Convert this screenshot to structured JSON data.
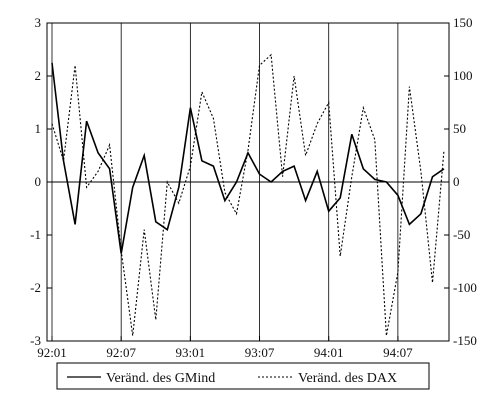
{
  "chart_data": {
    "type": "line",
    "title": "",
    "xlabel": "",
    "ylabel": "",
    "x": [
      "92:01",
      "92:02",
      "92:03",
      "92:04",
      "92:05",
      "92:06",
      "92:07",
      "92:08",
      "92:09",
      "92:10",
      "92:11",
      "92:12",
      "93:01",
      "93:02",
      "93:03",
      "93:04",
      "93:05",
      "93:06",
      "93:07",
      "93:08",
      "93:09",
      "93:10",
      "93:11",
      "93:12",
      "94:01",
      "94:02",
      "94:03",
      "94:04",
      "94:05",
      "94:06",
      "94:07",
      "94:08",
      "94:09",
      "94:10",
      "94:11"
    ],
    "x_tick_labels": [
      "92:01",
      "92:07",
      "93:01",
      "93:07",
      "94:01",
      "94:07"
    ],
    "y_left": {
      "lim": [
        -3,
        3
      ],
      "ticks": [
        "3",
        "2",
        "1",
        "0",
        "-1",
        "-2",
        "-3"
      ]
    },
    "y_right": {
      "lim": [
        -150,
        150
      ],
      "ticks": [
        "150",
        "100",
        "50",
        "0",
        "-50",
        "-100",
        "-150"
      ]
    },
    "vertical_grid_at": [
      "92:01",
      "92:07",
      "93:01",
      "93:07",
      "94:01",
      "94:07"
    ],
    "zero_line": true,
    "legend_placement": "bottom-center",
    "series": [
      {
        "name": "Veränd. des GMind",
        "axis": "left",
        "style": "solid",
        "color": "#000000",
        "values": [
          2.25,
          0.4,
          -0.8,
          1.15,
          0.55,
          0.25,
          -1.35,
          -0.1,
          0.5,
          -0.75,
          -0.9,
          -0.1,
          1.4,
          0.4,
          0.3,
          -0.35,
          0.0,
          0.55,
          0.15,
          0.0,
          0.2,
          0.3,
          -0.35,
          0.2,
          -0.55,
          -0.3,
          0.9,
          0.25,
          0.05,
          0.0,
          -0.25,
          -0.8,
          -0.6,
          0.1,
          0.25
        ]
      },
      {
        "name": "Veränd. des DAX",
        "axis": "right",
        "style": "dotted",
        "color": "#000000",
        "values": [
          55,
          20,
          110,
          -5,
          10,
          35,
          -65,
          -145,
          -45,
          -130,
          0,
          -20,
          15,
          85,
          60,
          -10,
          -30,
          30,
          110,
          120,
          5,
          100,
          25,
          55,
          75,
          -70,
          5,
          70,
          40,
          -145,
          -85,
          90,
          10,
          -95,
          30
        ]
      }
    ]
  }
}
